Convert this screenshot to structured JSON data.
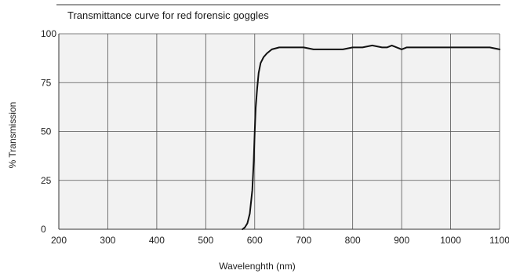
{
  "chart_data": {
    "type": "line",
    "title": "Transmittance curve for red forensic goggles",
    "xlabel": "Wavelenghth (nm)",
    "ylabel": "% Transmission",
    "xlim": [
      200,
      1100
    ],
    "ylim": [
      0,
      100
    ],
    "x_ticks": [
      200,
      300,
      400,
      500,
      600,
      700,
      800,
      900,
      1000,
      1100
    ],
    "y_ticks": [
      0,
      25,
      50,
      75,
      100
    ],
    "grid": true,
    "series": [
      {
        "color": "#111111",
        "x": [
          575,
          580,
          585,
          590,
          595,
          598,
          600,
          602,
          605,
          608,
          612,
          618,
          625,
          635,
          650,
          670,
          700,
          720,
          740,
          760,
          780,
          800,
          820,
          840,
          860,
          870,
          880,
          890,
          900,
          910,
          930,
          960,
          1000,
          1030,
          1060,
          1080,
          1100
        ],
        "y": [
          0,
          1,
          3,
          8,
          20,
          35,
          50,
          62,
          72,
          80,
          85,
          88,
          90,
          92,
          93,
          93,
          93,
          92,
          92,
          92,
          92,
          93,
          93,
          94,
          93,
          93,
          94,
          93,
          92,
          93,
          93,
          93,
          93,
          93,
          93,
          93,
          92
        ]
      }
    ]
  }
}
